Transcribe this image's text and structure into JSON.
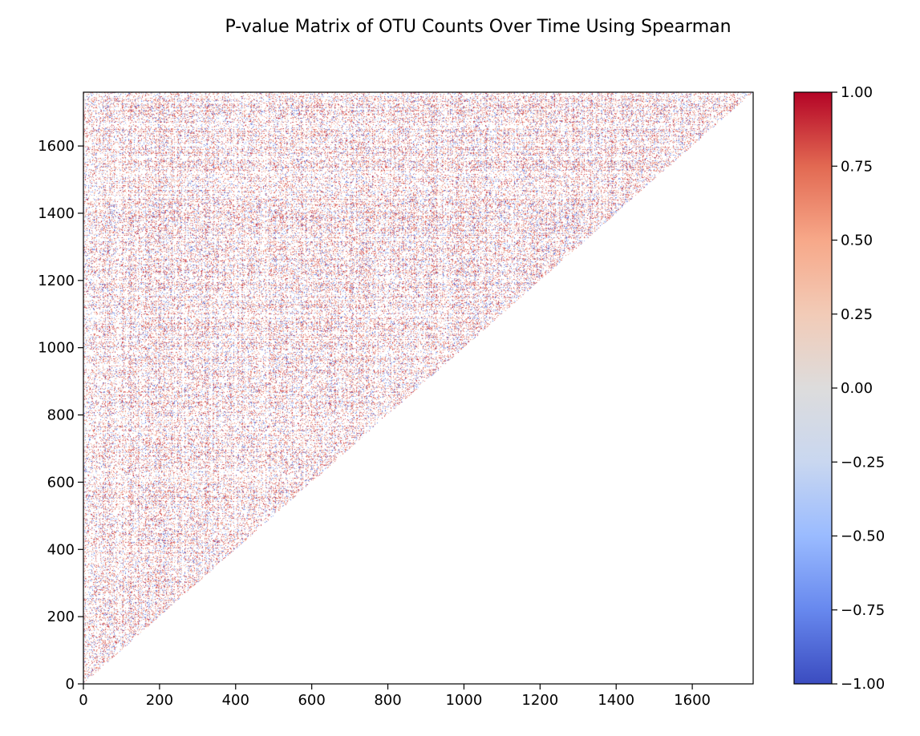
{
  "chart_data": {
    "type": "heatmap",
    "title": "P-value Matrix of OTU Counts Over Time Using Spearman",
    "xlabel": "",
    "ylabel": "",
    "matrix_size": 1760,
    "mask": "upper-left triangle shown (row index > column index); remainder blank",
    "xlim": [
      0,
      1760
    ],
    "ylim": [
      0,
      1760
    ],
    "x_ticks": [
      0,
      200,
      400,
      600,
      800,
      1000,
      1200,
      1400,
      1600
    ],
    "y_ticks": [
      0,
      200,
      400,
      600,
      800,
      1000,
      1200,
      1400,
      1600
    ],
    "x_tick_labels": [
      "0",
      "200",
      "400",
      "600",
      "800",
      "1000",
      "1200",
      "1400",
      "1600"
    ],
    "y_tick_labels": [
      "0",
      "200",
      "400",
      "600",
      "800",
      "1000",
      "1200",
      "1400",
      "1600"
    ],
    "colormap": "coolwarm",
    "colormap_stops": [
      "#3b4cc0",
      "#6788ee",
      "#9abbff",
      "#c9d7f0",
      "#dddcdc",
      "#f2cbb7",
      "#f7a889",
      "#e26952",
      "#b40426"
    ],
    "colorbar": {
      "range": [
        -1.0,
        1.0
      ],
      "ticks": [
        1.0,
        0.75,
        0.5,
        0.25,
        0.0,
        -0.25,
        -0.5,
        -0.75,
        -1.0
      ],
      "tick_labels": [
        "1.00",
        "0.75",
        "0.50",
        "0.25",
        "0.00",
        "−0.25",
        "−0.50",
        "−0.75",
        "−1.00"
      ]
    },
    "grid": false,
    "legend": "none"
  }
}
